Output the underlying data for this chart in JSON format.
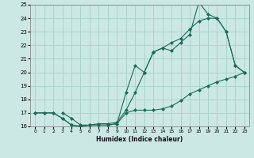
{
  "xlabel": "Humidex (Indice chaleur)",
  "xlim": [
    -0.5,
    23.5
  ],
  "ylim": [
    16,
    25
  ],
  "xticks": [
    0,
    1,
    2,
    3,
    4,
    5,
    6,
    7,
    8,
    9,
    10,
    11,
    12,
    13,
    14,
    15,
    16,
    17,
    18,
    19,
    20,
    21,
    22,
    23
  ],
  "yticks": [
    16,
    17,
    18,
    19,
    20,
    21,
    22,
    23,
    24,
    25
  ],
  "bg_color": "#cce8e4",
  "grid_color": "#aad4cf",
  "line_color": "#1a6b5a",
  "line1_x": [
    0,
    1,
    2,
    3,
    4,
    5,
    6,
    7,
    8,
    9,
    10,
    11,
    12,
    13,
    14,
    15,
    16,
    17,
    18,
    19,
    20,
    21,
    22,
    23
  ],
  "line1_y": [
    17.0,
    17.0,
    17.0,
    16.6,
    16.1,
    16.0,
    16.1,
    16.1,
    16.1,
    16.2,
    17.0,
    17.2,
    17.2,
    17.2,
    17.3,
    17.5,
    17.9,
    18.4,
    18.7,
    19.0,
    19.3,
    19.5,
    19.7,
    20.0
  ],
  "line2_x": [
    0,
    1,
    2,
    3,
    4,
    5,
    6,
    7,
    8,
    9,
    10,
    11,
    12,
    13,
    14,
    15,
    16,
    17,
    18,
    19,
    20,
    21,
    22,
    23
  ],
  "line2_y": [
    17.0,
    17.0,
    17.0,
    16.6,
    16.1,
    16.0,
    16.1,
    16.1,
    16.1,
    16.2,
    18.5,
    20.5,
    20.0,
    21.5,
    21.8,
    21.6,
    22.2,
    22.8,
    25.2,
    24.3,
    24.0,
    23.0,
    20.5,
    20.0
  ],
  "line3_x": [
    3,
    4,
    5,
    6,
    7,
    8,
    9,
    10,
    11,
    12,
    13,
    14,
    15,
    16,
    17,
    18,
    19,
    20,
    21,
    22,
    23
  ],
  "line3_y": [
    17.0,
    16.6,
    16.1,
    16.1,
    16.2,
    16.2,
    16.3,
    17.2,
    18.5,
    20.0,
    21.5,
    21.8,
    22.2,
    22.5,
    23.2,
    23.8,
    24.0,
    24.0,
    23.0,
    20.5,
    20.0
  ]
}
